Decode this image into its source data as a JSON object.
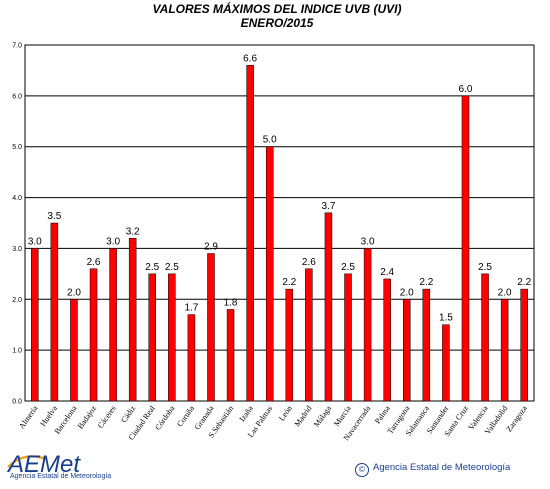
{
  "chart_data": {
    "type": "bar",
    "title": "VALORES MÁXIMOS DEL INDICE UVB (UVI)",
    "subtitle": "ENERO/2015",
    "xlabel": "",
    "ylabel": "",
    "ylim": [
      0,
      7
    ],
    "yticks": [
      "0.0",
      "1.0",
      "2.0",
      "3.0",
      "4.0",
      "5.0",
      "6.0",
      "7.0"
    ],
    "grid": true,
    "legend": "none",
    "bar_color": "#ff0000",
    "categories": [
      "Almería",
      "Huelva",
      "Barcelona",
      "Badajoz",
      "Cáceres",
      "Cádiz",
      "Ciudad Real",
      "Córdoba",
      "Coruña",
      "Granada",
      "S.Sebastián",
      "Izaña",
      "Las Palmas",
      "León",
      "Madrid",
      "Málaga",
      "Murcia",
      "Navacerrada",
      "Palma",
      "Tarragona",
      "Salamanca",
      "Santander",
      "Santa Cruz",
      "Valencia",
      "Valladolid",
      "Zaragoza"
    ],
    "values": [
      3.0,
      3.5,
      2.0,
      2.6,
      3.0,
      3.2,
      2.5,
      2.5,
      1.7,
      2.9,
      1.8,
      6.6,
      5.0,
      2.2,
      2.6,
      3.7,
      2.5,
      3.0,
      2.4,
      2.0,
      2.2,
      1.5,
      6.0,
      2.5,
      2.0,
      2.2
    ],
    "value_labels": [
      "3.0",
      "3.5",
      "2.0",
      "2.6",
      "3.0",
      "3.2",
      "2.5",
      "2.5",
      "1.7",
      "2.9",
      "1.8",
      "6.6",
      "5.0",
      "2.2",
      "2.6",
      "3.7",
      "2.5",
      "3.0",
      "2.4",
      "2.0",
      "2.2",
      "1.5",
      "6.0",
      "2.5",
      "2.0",
      "2.2"
    ]
  },
  "footer": {
    "logo_text": "AEMet",
    "logo_subtext": "Agencia Estatal de Meteorología",
    "credit_symbol": "©",
    "credit_text": "Agencia Estatal de Meteorología",
    "brand_color": "#1a3f8f",
    "accent_color": "#e8a317"
  }
}
